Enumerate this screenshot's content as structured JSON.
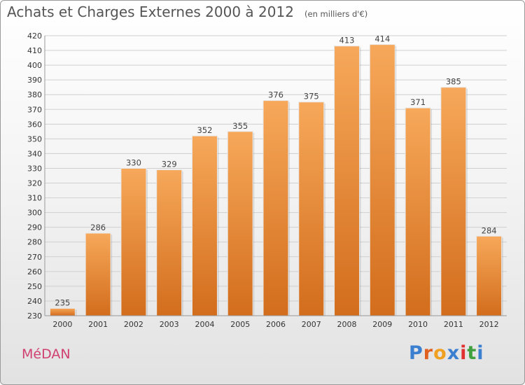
{
  "header": {
    "title": "Achats et Charges Externes 2000 à 2012",
    "unit": "(en milliers d'€)"
  },
  "footer": {
    "commune": "MéDAN",
    "logo_letters": [
      "P",
      "r",
      "o",
      "x",
      "i",
      "t",
      "i"
    ],
    "logo_colors": [
      "#3a7fd0",
      "#e06020",
      "#f0a020",
      "#3a7fd0",
      "#e03030",
      "#40a040",
      "#3a7fd0"
    ]
  },
  "colors": {
    "bar_light": "#f7a85a",
    "bar_dark": "#d26d1c",
    "grid": "#cfcfcf"
  },
  "chart_data": {
    "type": "bar",
    "title": "Achats et Charges Externes 2000 à 2012",
    "subtitle": "(en milliers d'€)",
    "xlabel": "",
    "ylabel": "",
    "categories": [
      "2000",
      "2001",
      "2002",
      "2003",
      "2004",
      "2005",
      "2006",
      "2007",
      "2008",
      "2009",
      "2010",
      "2011",
      "2012"
    ],
    "values": [
      235,
      286,
      330,
      329,
      352,
      355,
      376,
      375,
      413,
      414,
      371,
      385,
      284
    ],
    "ylim": [
      230,
      420
    ],
    "yticks": [
      230,
      240,
      250,
      260,
      270,
      280,
      290,
      300,
      310,
      320,
      330,
      340,
      350,
      360,
      370,
      380,
      390,
      400,
      410,
      420
    ],
    "grid": true,
    "legend": "none",
    "data_labels": true
  }
}
